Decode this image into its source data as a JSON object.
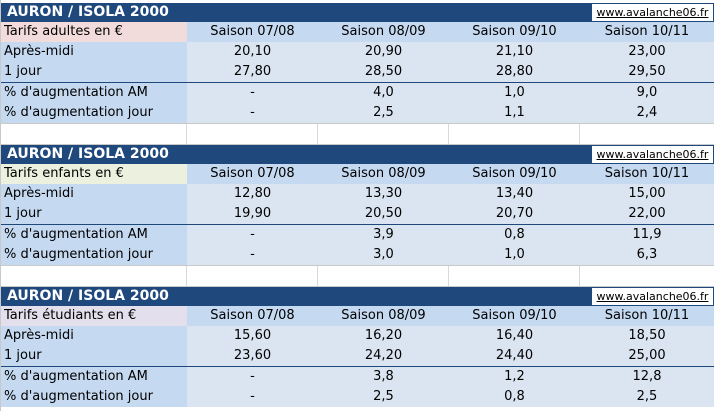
{
  "site": "www.avalanche06.fr",
  "columns": [
    "Saison 07/08",
    "Saison 08/09",
    "Saison 09/10",
    "Saison 10/11"
  ],
  "blocks": [
    {
      "title": "AURON / ISOLA 2000",
      "label": "Tarifs adultes en €",
      "rows": [
        {
          "label": "Après-midi",
          "values": [
            "20,10",
            "20,90",
            "21,10",
            "23,00"
          ]
        },
        {
          "label": "1 jour",
          "values": [
            "27,80",
            "28,50",
            "28,80",
            "29,50"
          ]
        },
        {
          "label": "% d'augmentation AM",
          "values": [
            "-",
            "4,0",
            "1,0",
            "9,0"
          ]
        },
        {
          "label": "% d'augmentation jour",
          "values": [
            "-",
            "2,5",
            "1,1",
            "2,4"
          ]
        }
      ]
    },
    {
      "title": "AURON / ISOLA 2000",
      "label": "Tarifs enfants en €",
      "rows": [
        {
          "label": "Après-midi",
          "values": [
            "12,80",
            "13,30",
            "13,40",
            "15,00"
          ]
        },
        {
          "label": "1 jour",
          "values": [
            "19,90",
            "20,50",
            "20,70",
            "22,00"
          ]
        },
        {
          "label": "% d'augmentation AM",
          "values": [
            "-",
            "3,9",
            "0,8",
            "11,9"
          ]
        },
        {
          "label": "% d'augmentation jour",
          "values": [
            "-",
            "3,0",
            "1,0",
            "6,3"
          ]
        }
      ]
    },
    {
      "title": "AURON / ISOLA 2000",
      "label": "Tarifs étudiants en €",
      "rows": [
        {
          "label": "Après-midi",
          "values": [
            "15,60",
            "16,20",
            "16,40",
            "18,50"
          ]
        },
        {
          "label": "1 jour",
          "values": [
            "23,60",
            "24,20",
            "24,40",
            "25,00"
          ]
        },
        {
          "label": "% d'augmentation AM",
          "values": [
            "-",
            "3,8",
            "1,2",
            "12,8"
          ]
        },
        {
          "label": "% d'augmentation jour",
          "values": [
            "-",
            "2,5",
            "0,8",
            "2,5"
          ]
        }
      ]
    }
  ]
}
